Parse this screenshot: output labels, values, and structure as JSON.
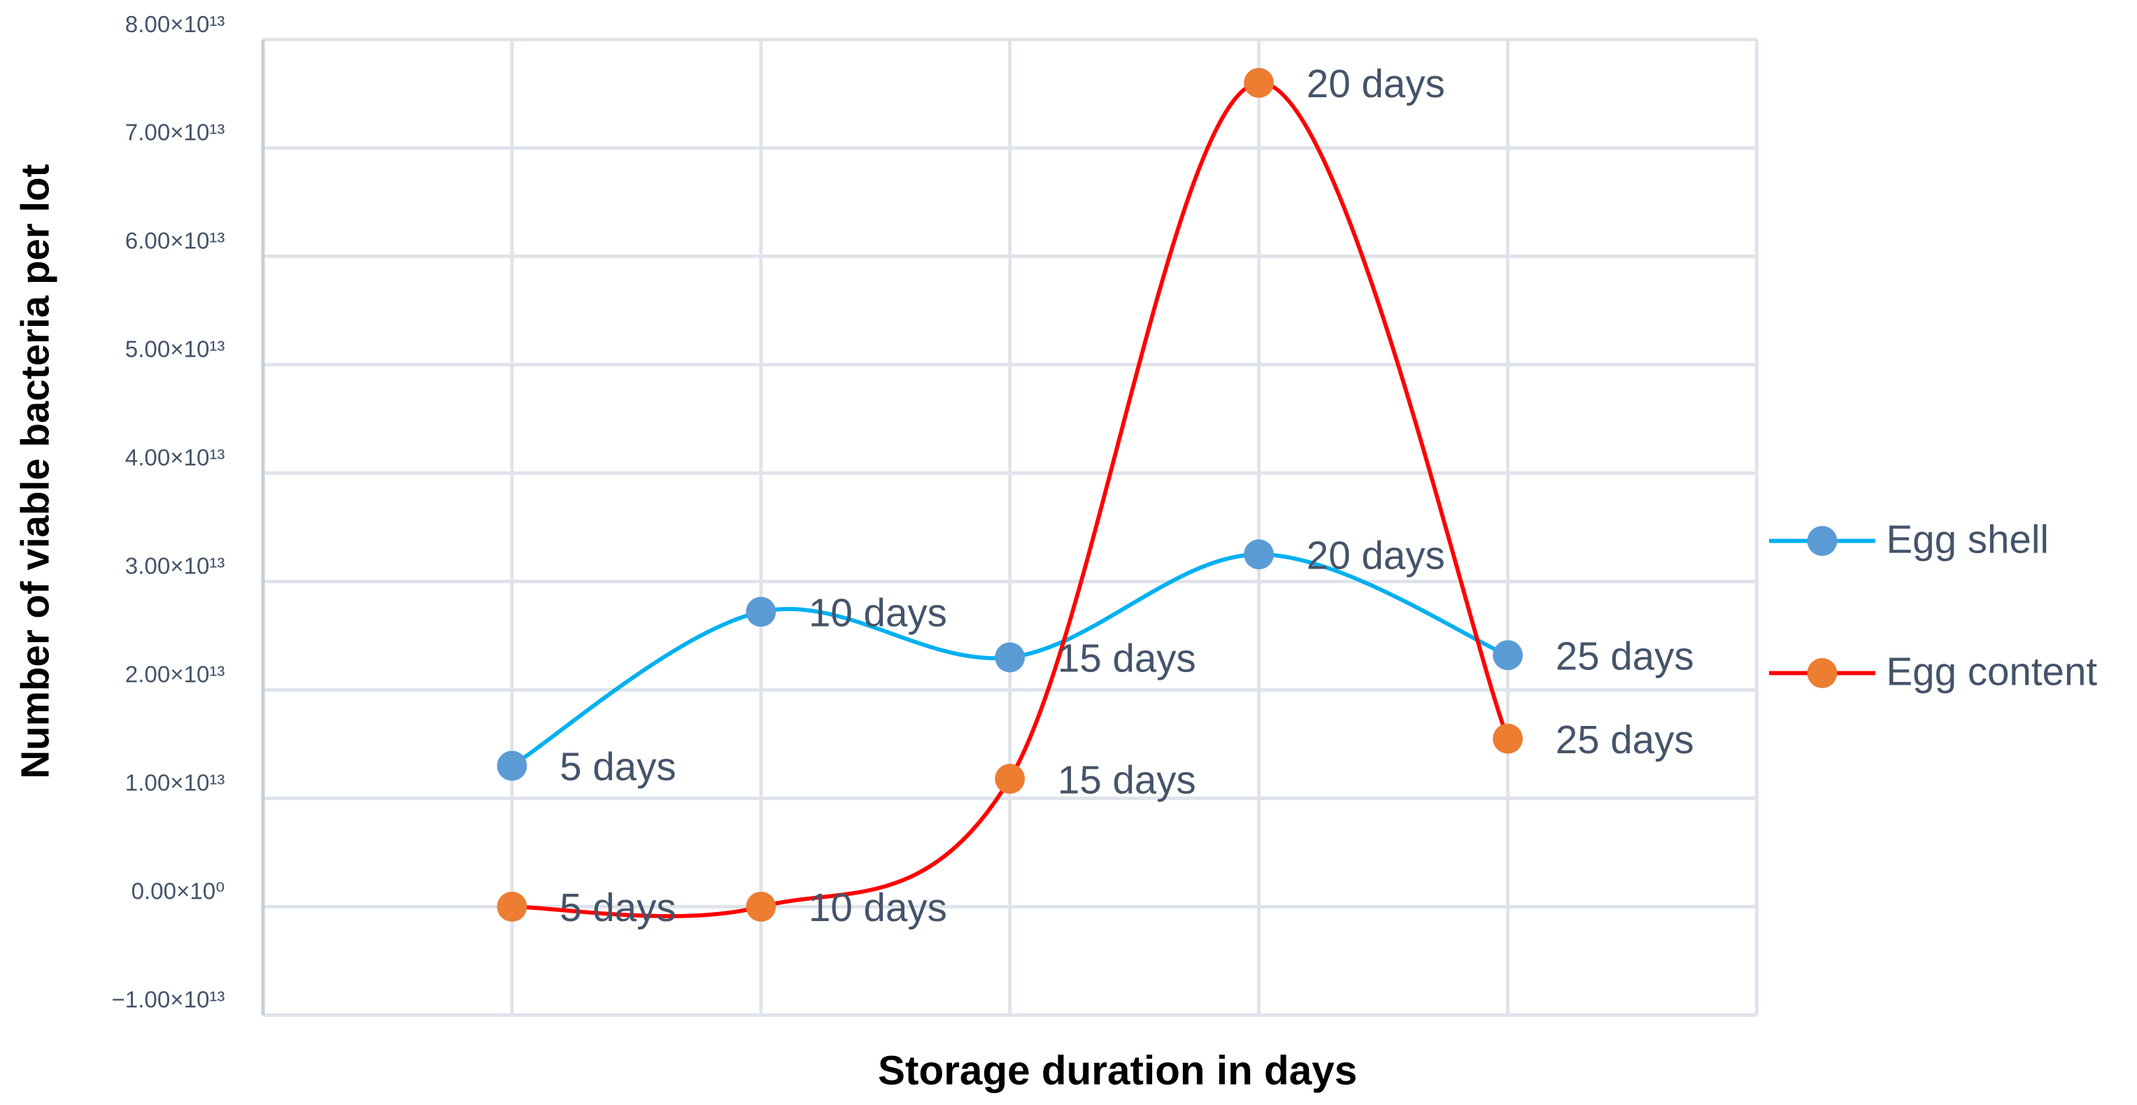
{
  "chart_data": {
    "type": "line",
    "x_label": "Storage duration in days",
    "y_label": "Number of viable bacteria per lot",
    "categories": [
      "5 days",
      "10 days",
      "15 days",
      "20 days",
      "25 days"
    ],
    "series": [
      {
        "name": "Egg shell",
        "color": "#00b0f0",
        "marker_color": "#5b9bd5",
        "values": [
          13000000000000,
          27200000000000,
          23000000000000,
          32500000000000,
          23200000000000
        ]
      },
      {
        "name": "Egg content",
        "color": "#ff0000",
        "marker_color": "#ed7d31",
        "values": [
          0,
          0,
          11800000000000,
          76000000000000,
          15500000000000
        ]
      }
    ],
    "ylim": [
      -10000000000000,
      80000000000000
    ],
    "yticks": [
      {
        "value": -10000000000000,
        "label": "−1.00×10¹³"
      },
      {
        "value": 0,
        "label": "0.00×10⁰"
      },
      {
        "value": 10000000000000,
        "label": "1.00×10¹³"
      },
      {
        "value": 20000000000000,
        "label": "2.00×10¹³"
      },
      {
        "value": 30000000000000,
        "label": "3.00×10¹³"
      },
      {
        "value": 40000000000000,
        "label": "4.00×10¹³"
      },
      {
        "value": 50000000000000,
        "label": "5.00×10¹³"
      },
      {
        "value": 60000000000000,
        "label": "6.00×10¹³"
      },
      {
        "value": 70000000000000,
        "label": "7.00×10¹³"
      },
      {
        "value": 80000000000000,
        "label": "8.00×10¹³"
      }
    ],
    "grid": true,
    "smooth": true,
    "legend": "right"
  }
}
